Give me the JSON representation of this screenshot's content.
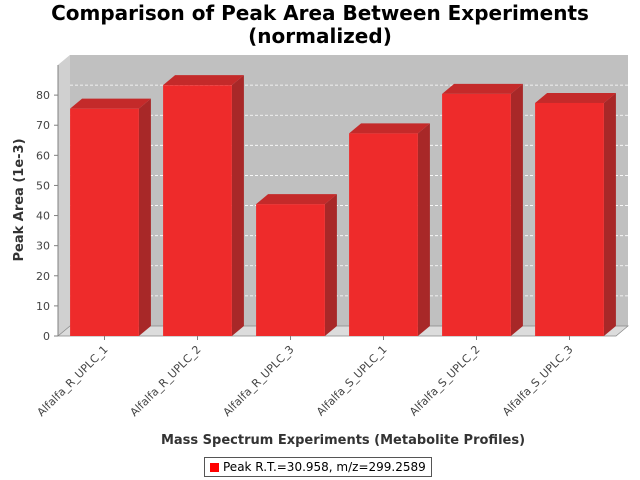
{
  "chart_data": {
    "type": "bar",
    "title": [
      "Comparison of Peak Area Between Experiments",
      "(normalized)"
    ],
    "xlabel": "Mass Spectrum Experiments (Metabolite Profiles)",
    "ylabel": "Peak Area (1e-3)",
    "categories": [
      "Alfalfa_R_UPLC_1",
      "Alfalfa_R_UPLC_2",
      "Alfalfa_R_UPLC_3",
      "Alfalfa_S_UPLC_1",
      "Alfalfa_S_UPLC_2",
      "Alfalfa_S_UPLC_3"
    ],
    "series": [
      {
        "name": "Peak R.T.=30.958, m/z=299.2589",
        "values": [
          75.5,
          83.3,
          43.8,
          67.3,
          80.4,
          77.4
        ]
      }
    ],
    "ylim": [
      0,
      90
    ],
    "yticks": [
      0,
      10,
      20,
      30,
      40,
      50,
      60,
      70,
      80
    ],
    "grid": true,
    "legend_position": "bottom",
    "bar_color": "#ee2b2b",
    "plot_background": "#c0c0c0"
  }
}
